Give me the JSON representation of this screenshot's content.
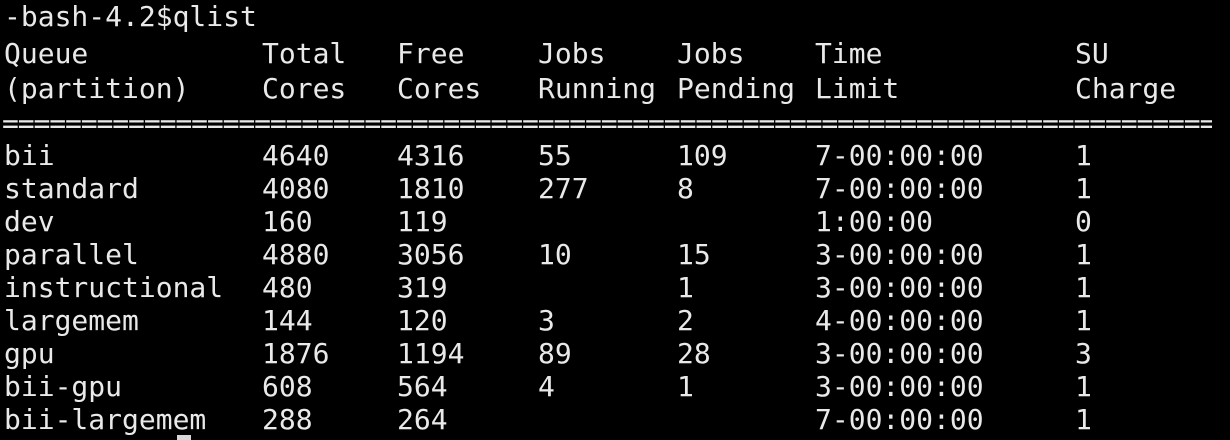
{
  "terminal": {
    "prompt_line": "-bash-4.2$qlist",
    "header_top": [
      "Queue",
      "Total",
      "Free",
      "Jobs",
      "Jobs",
      "Time",
      "SU"
    ],
    "header_bottom": [
      "(partition)",
      "Cores",
      "Cores",
      "Running",
      "Pending",
      "Limit",
      "Charge"
    ],
    "separator": "===========================================================================================",
    "rows": [
      [
        "bii",
        "4640",
        "4316",
        "55",
        "109",
        "7-00:00:00",
        "1"
      ],
      [
        "standard",
        "4080",
        "1810",
        "277",
        "8",
        "7-00:00:00",
        "1"
      ],
      [
        "dev",
        "160",
        "119",
        "",
        "",
        "1:00:00",
        "0"
      ],
      [
        "parallel",
        "4880",
        "3056",
        "10",
        "15",
        "3-00:00:00",
        "1"
      ],
      [
        "instructional",
        "480",
        "319",
        "",
        "1",
        "3-00:00:00",
        "1"
      ],
      [
        "largemem",
        "144",
        "120",
        "3",
        "2",
        "4-00:00:00",
        "1"
      ],
      [
        "gpu",
        "1876",
        "1194",
        "89",
        "28",
        "3-00:00:00",
        "3"
      ],
      [
        "bii-gpu",
        "608",
        "564",
        "4",
        "1",
        "3-00:00:00",
        "1"
      ],
      [
        "bii-largemem",
        "288",
        "264",
        "",
        "",
        "7-00:00:00",
        "1"
      ]
    ],
    "colors": {
      "background": "#000000",
      "text": "#e9e9e9"
    }
  }
}
